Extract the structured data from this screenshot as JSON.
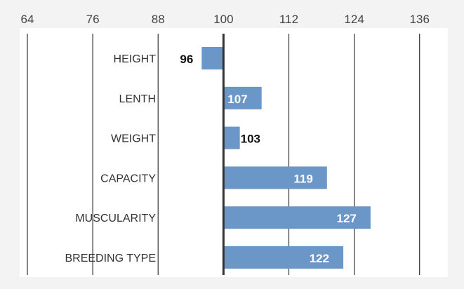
{
  "chart_data": {
    "type": "bar",
    "orientation": "horizontal",
    "baseline": 100,
    "categories": [
      "HEIGHT",
      "LENTH",
      "WEIGHT",
      "CAPACITY",
      "MUSCULARITY",
      "BREEDING TYPE"
    ],
    "values": [
      96,
      107,
      103,
      119,
      127,
      122
    ],
    "data_labels": [
      "96",
      "107",
      "103",
      "119",
      "127",
      "122"
    ],
    "x_ticks": [
      64,
      76,
      88,
      100,
      112,
      124,
      136
    ],
    "x_tick_labels": [
      "64",
      "76",
      "88",
      "100",
      "112",
      "124",
      "136"
    ],
    "xlim": [
      64,
      136
    ],
    "x_axis_position": "top",
    "grid": true,
    "legend": "none",
    "title": "",
    "xlabel": "",
    "ylabel": ""
  },
  "colors": {
    "bar": "#6b96c8",
    "background": "#f3f3f3",
    "plot_background": "#ffffff",
    "gridline": "#333333",
    "baseline": "#333333"
  }
}
